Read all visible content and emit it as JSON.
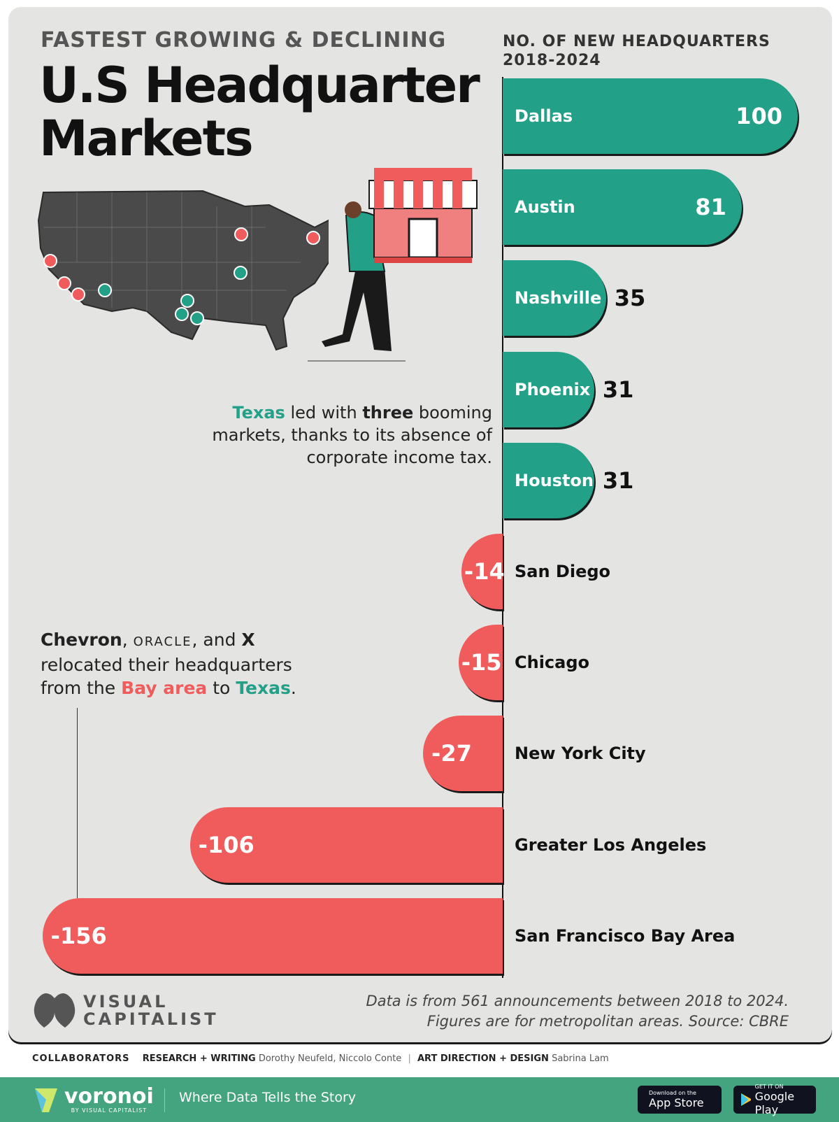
{
  "header": {
    "kicker": "FASTEST GROWING & DECLINING",
    "title_line1": "U.S Headquarter",
    "title_line2": "Markets"
  },
  "chart_data": {
    "type": "bar",
    "orientation": "horizontal",
    "title": "NO. OF NEW HEADQUARTERS 2018-2024",
    "subtitle_line1": "NO. OF NEW HEADQUARTERS",
    "subtitle_line2": "2018-2024",
    "categories": [
      "Dallas",
      "Austin",
      "Nashville",
      "Phoenix",
      "Houston",
      "San Diego",
      "Chicago",
      "New York City",
      "Greater Los Angeles",
      "San Francisco Bay Area"
    ],
    "values": [
      100,
      81,
      35,
      31,
      31,
      -14,
      -15,
      -27,
      -106,
      -156
    ],
    "value_labels": [
      "100",
      "81",
      "35",
      "31",
      "31",
      "-14",
      "-15",
      "-27",
      "-106",
      "-156"
    ],
    "xlim": [
      -156,
      100
    ],
    "grid": false,
    "colors": {
      "positive": "#23a088",
      "negative": "#f05b5b"
    }
  },
  "annotations": {
    "texas": {
      "p1": "Texas",
      "p2": " led with ",
      "p3": "three",
      "p4": " booming markets, thanks to its absence of corporate income tax."
    },
    "relocation": {
      "p1": "Chevron",
      "p2": ", ",
      "p3": "ORACLE",
      "p4": ", and ",
      "p5": "X",
      "p6": " relocated their headquarters from the ",
      "p7": "Bay area",
      "p8": " to ",
      "p9": "Texas",
      "p10": "."
    }
  },
  "map": {
    "dot_colors": {
      "growing": "#23a088",
      "declining": "#f05b5b"
    }
  },
  "source": {
    "line1": "Data is from 561 announcements between 2018 to 2024.",
    "line2": "Figures are for metropolitan areas. Source: CBRE"
  },
  "logo": {
    "line1": "VISUAL",
    "line2": "CAPITALIST"
  },
  "collaborators": {
    "label": "COLLABORATORS",
    "research_label": "RESEARCH + WRITING",
    "research": "Dorothy Neufeld, Niccolo Conte",
    "sep": "|",
    "design_label": "ART DIRECTION + DESIGN",
    "design": "Sabrina Lam"
  },
  "footer": {
    "brand": "voronoi",
    "brand_sub": "BY VISUAL CAPITALIST",
    "tagline": "Where Data Tells the Story",
    "appstore_small": "Download on the",
    "appstore": "App Store",
    "play_small": "GET IT ON",
    "play": "Google Play"
  }
}
